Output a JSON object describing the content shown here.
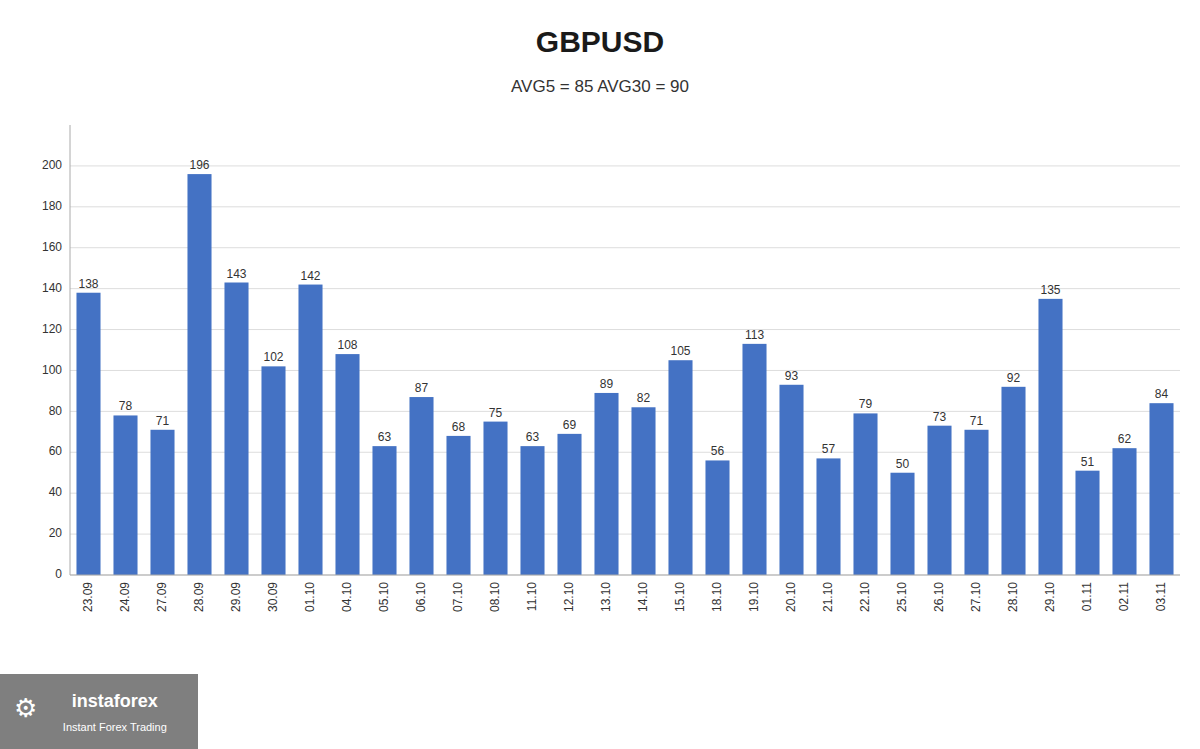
{
  "chart_data": {
    "type": "bar",
    "title": "GBPUSD",
    "subtitle": "AVG5 = 85 AVG30 = 90",
    "categories": [
      "23.09",
      "24.09",
      "27.09",
      "28.09",
      "29.09",
      "30.09",
      "01.10",
      "04.10",
      "05.10",
      "06.10",
      "07.10",
      "08.10",
      "11.10",
      "12.10",
      "13.10",
      "14.10",
      "15.10",
      "18.10",
      "19.10",
      "20.10",
      "21.10",
      "22.10",
      "25.10",
      "26.10",
      "27.10",
      "28.10",
      "29.10",
      "01.11",
      "02.11",
      "03.11"
    ],
    "values": [
      138,
      78,
      71,
      196,
      143,
      102,
      142,
      108,
      63,
      87,
      68,
      75,
      63,
      69,
      89,
      82,
      105,
      56,
      113,
      93,
      57,
      79,
      50,
      73,
      71,
      92,
      135,
      51,
      62,
      84
    ],
    "color": "#4472C4",
    "ylim": [
      0,
      220
    ],
    "yticks": [
      0,
      20,
      40,
      60,
      80,
      100,
      120,
      140,
      160,
      180,
      200
    ],
    "grid": true,
    "data_labels": true,
    "annotations": [
      "⚙",
      "instaforex",
      "Instant Forex Trading"
    ]
  }
}
